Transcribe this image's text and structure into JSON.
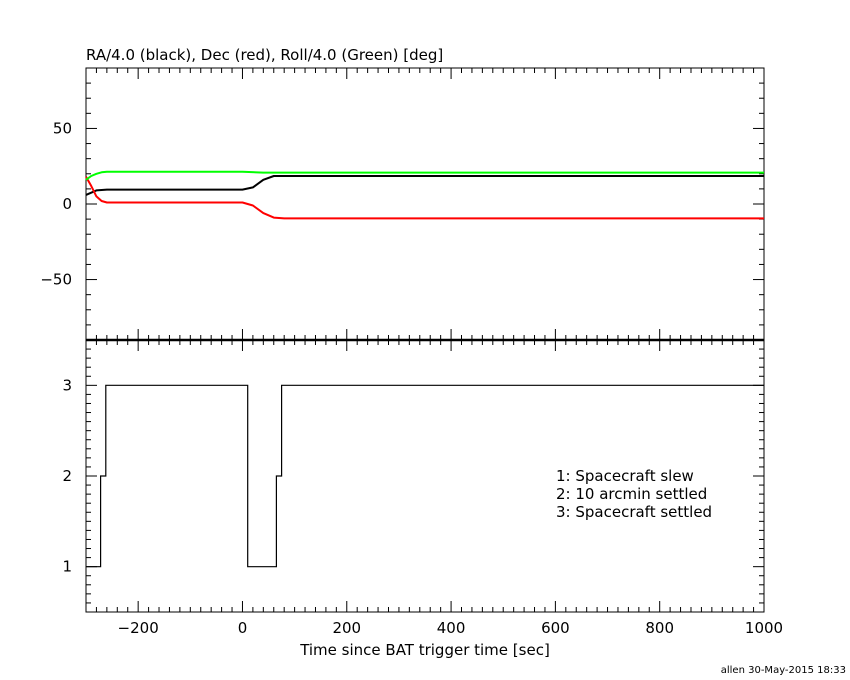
{
  "chart_data": [
    {
      "type": "line",
      "title": "RA/4.0 (black), Dec (red), Roll/4.0 (Green) [deg]",
      "xlim": [
        -300,
        1000
      ],
      "ylim": [
        -90,
        90
      ],
      "yticks": [
        50,
        0,
        -50
      ],
      "ytick_labels": [
        "50",
        "0",
        "−50"
      ],
      "series": [
        {
          "color": "#000000",
          "x": [
            -300,
            -280,
            -260,
            -200,
            -100,
            0,
            20,
            40,
            60,
            80,
            100,
            200,
            300,
            360,
            500,
            700,
            1000
          ],
          "y": [
            6,
            9,
            9.5,
            9.5,
            9.5,
            9.5,
            11,
            16,
            18.5,
            18.5,
            18.5,
            18.5,
            18.5,
            18.5,
            18.5,
            18.5,
            18.5
          ]
        },
        {
          "color": "#ff0000",
          "x": [
            -300,
            -290,
            -280,
            -270,
            -260,
            -200,
            -100,
            0,
            20,
            40,
            60,
            80,
            100,
            200,
            300,
            360,
            500,
            700,
            1000
          ],
          "y": [
            18,
            12,
            5,
            2,
            1,
            1,
            1,
            1,
            -1,
            -6,
            -9,
            -9.5,
            -9.5,
            -9.5,
            -9.5,
            -9.5,
            -9.5,
            -9.5,
            -9.5
          ]
        },
        {
          "color": "#00ff00",
          "x": [
            -300,
            -290,
            -280,
            -270,
            -260,
            -200,
            -100,
            0,
            40,
            80,
            200,
            360,
            500,
            700,
            1000
          ],
          "y": [
            16,
            18.5,
            20,
            21,
            21.3,
            21.3,
            21.3,
            21.3,
            20.8,
            20.8,
            20.8,
            20.8,
            20.8,
            20.8,
            20.8
          ]
        }
      ]
    },
    {
      "type": "line",
      "xlabel": "Time since BAT trigger time [sec]",
      "xlim": [
        -300,
        1000
      ],
      "ylim": [
        0.5,
        3.5
      ],
      "xticks": [
        -200,
        0,
        200,
        400,
        600,
        800,
        1000
      ],
      "xtick_labels": [
        "−200",
        "0",
        "200",
        "400",
        "600",
        "800",
        "1000"
      ],
      "yticks": [
        3,
        2,
        1
      ],
      "ytick_labels": [
        "3",
        "2",
        "1"
      ],
      "step_series": {
        "color": "#000000",
        "x": [
          -300,
          -272,
          -272,
          -262,
          -262,
          10,
          10,
          65,
          65,
          75,
          75,
          1000
        ],
        "y": [
          1,
          1,
          2,
          2,
          3,
          3,
          1,
          1,
          2,
          2,
          3,
          3
        ]
      },
      "legend": [
        "1: Spacecraft slew",
        "2: 10 arcmin settled",
        "3: Spacecraft settled"
      ]
    }
  ],
  "footer": "allen 30-May-2015 18:33"
}
